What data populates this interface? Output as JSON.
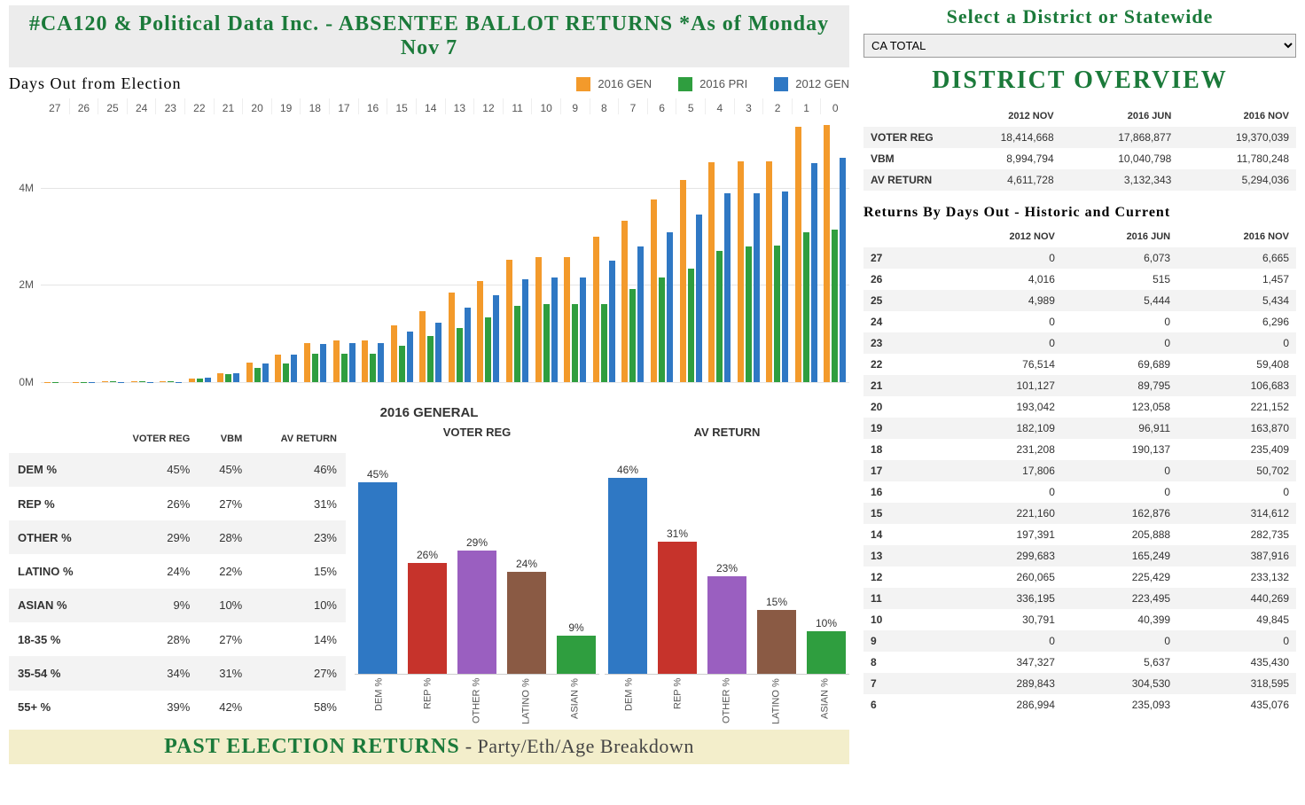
{
  "header": {
    "title": "#CA120 & Political Data Inc. - ABSENTEE BALLOT RETURNS *As of Monday Nov 7",
    "chart_title": "Days Out from Election",
    "sub_title": "2016 GENERAL",
    "past_header_main": "PAST ELECTION RETURNS",
    "past_header_sub": " - Party/Eth/Age Breakdown"
  },
  "selector": {
    "title": "Select a District or Statewide",
    "value": "CA TOTAL"
  },
  "overview": {
    "title": "DISTRICT OVERVIEW",
    "columns": [
      "",
      "2012 NOV",
      "2016 JUN",
      "2016 NOV"
    ],
    "rows": [
      [
        "VOTER REG",
        "18,414,668",
        "17,868,877",
        "19,370,039"
      ],
      [
        "VBM",
        "8,994,794",
        "10,040,798",
        "11,780,248"
      ],
      [
        "AV RETURN",
        "4,611,728",
        "3,132,343",
        "5,294,036"
      ]
    ]
  },
  "returns_by_days": {
    "title": "Returns By Days Out - Historic and Current",
    "columns": [
      "",
      "2012 NOV",
      "2016 JUN",
      "2016 NOV"
    ],
    "rows": [
      [
        "27",
        "0",
        "6,073",
        "6,665"
      ],
      [
        "26",
        "4,016",
        "515",
        "1,457"
      ],
      [
        "25",
        "4,989",
        "5,444",
        "5,434"
      ],
      [
        "24",
        "0",
        "0",
        "6,296"
      ],
      [
        "23",
        "0",
        "0",
        "0"
      ],
      [
        "22",
        "76,514",
        "69,689",
        "59,408"
      ],
      [
        "21",
        "101,127",
        "89,795",
        "106,683"
      ],
      [
        "20",
        "193,042",
        "123,058",
        "221,152"
      ],
      [
        "19",
        "182,109",
        "96,911",
        "163,870"
      ],
      [
        "18",
        "231,208",
        "190,137",
        "235,409"
      ],
      [
        "17",
        "17,806",
        "0",
        "50,702"
      ],
      [
        "16",
        "0",
        "0",
        "0"
      ],
      [
        "15",
        "221,160",
        "162,876",
        "314,612"
      ],
      [
        "14",
        "197,391",
        "205,888",
        "282,735"
      ],
      [
        "13",
        "299,683",
        "165,249",
        "387,916"
      ],
      [
        "12",
        "260,065",
        "225,429",
        "233,132"
      ],
      [
        "11",
        "336,195",
        "223,495",
        "440,269"
      ],
      [
        "10",
        "30,791",
        "40,399",
        "49,845"
      ],
      [
        "9",
        "0",
        "0",
        "0"
      ],
      [
        "8",
        "347,327",
        "5,637",
        "435,430"
      ],
      [
        "7",
        "289,843",
        "304,530",
        "318,595"
      ],
      [
        "6",
        "286,994",
        "235,093",
        "435,076"
      ]
    ]
  },
  "main_chart": {
    "type": "bar",
    "ylim": [
      0,
      5400000
    ],
    "yticks": [
      {
        "v": 0,
        "l": "0M"
      },
      {
        "v": 2000000,
        "l": "2M"
      },
      {
        "v": 4000000,
        "l": "4M"
      }
    ],
    "legend": [
      {
        "label": "2016 GEN",
        "color": "#f39a2b"
      },
      {
        "label": "2016 PRI",
        "color": "#2f9e3f"
      },
      {
        "label": "2012 GEN",
        "color": "#2f78c4"
      }
    ],
    "categories": [
      "27",
      "26",
      "25",
      "24",
      "23",
      "22",
      "21",
      "20",
      "19",
      "18",
      "17",
      "16",
      "15",
      "14",
      "13",
      "12",
      "11",
      "10",
      "9",
      "8",
      "7",
      "6",
      "5",
      "4",
      "3",
      "2",
      "1",
      "0"
    ],
    "series": {
      "gen2016": [
        6665,
        8122,
        13556,
        19852,
        19852,
        79260,
        185943,
        407095,
        570965,
        806374,
        857076,
        857076,
        1171688,
        1454423,
        1842339,
        2075471,
        2515740,
        2565585,
        2565585,
        3001015,
        3319610,
        3754686,
        4168543,
        4527700,
        4544300,
        4545800,
        5248036,
        5294036
      ],
      "pri2016": [
        6073,
        6588,
        12032,
        12032,
        12032,
        81721,
        171516,
        294574,
        391485,
        581622,
        581622,
        581622,
        744498,
        950386,
        1115635,
        1341064,
        1564559,
        1604958,
        1604958,
        1610595,
        1915125,
        2150218,
        2329882,
        2693260,
        2797480,
        2803080,
        3091343,
        3132343
      ],
      "gen2012": [
        0,
        4016,
        9005,
        9005,
        9005,
        85519,
        186646,
        379688,
        561797,
        793005,
        810811,
        810811,
        1031971,
        1229362,
        1529045,
        1789110,
        2125305,
        2156096,
        2156096,
        2503423,
        2793266,
        3080260,
        3455847,
        3880710,
        3880710,
        3931400,
        4500000,
        4611728
      ]
    },
    "bar_colors": {
      "gen2016": "#f39a2b",
      "pri2016": "#2f9e3f",
      "gen2012": "#2f78c4"
    }
  },
  "breakdown": {
    "columns": [
      "",
      "VOTER REG",
      "VBM",
      "AV RETURN"
    ],
    "rows": [
      [
        "DEM %",
        "45%",
        "45%",
        "46%"
      ],
      [
        "REP %",
        "26%",
        "27%",
        "31%"
      ],
      [
        "OTHER %",
        "29%",
        "28%",
        "23%"
      ],
      [
        "LATINO %",
        "24%",
        "22%",
        "15%"
      ],
      [
        "ASIAN %",
        "9%",
        "10%",
        "10%"
      ],
      [
        "18-35 %",
        "28%",
        "27%",
        "14%"
      ],
      [
        "35-54 %",
        "34%",
        "31%",
        "27%"
      ],
      [
        "55+ %",
        "39%",
        "42%",
        "58%"
      ]
    ]
  },
  "mini_charts": {
    "ymax": 50,
    "categories": [
      "DEM %",
      "REP %",
      "OTHER %",
      "LATINO %",
      "ASIAN %"
    ],
    "colors": [
      "#2f78c4",
      "#c6332b",
      "#9a5fc0",
      "#8a5a44",
      "#2f9e3f"
    ],
    "charts": [
      {
        "title": "VOTER REG",
        "values": [
          45,
          26,
          29,
          24,
          9
        ]
      },
      {
        "title": "AV RETURN",
        "values": [
          46,
          31,
          23,
          15,
          10
        ]
      }
    ]
  }
}
